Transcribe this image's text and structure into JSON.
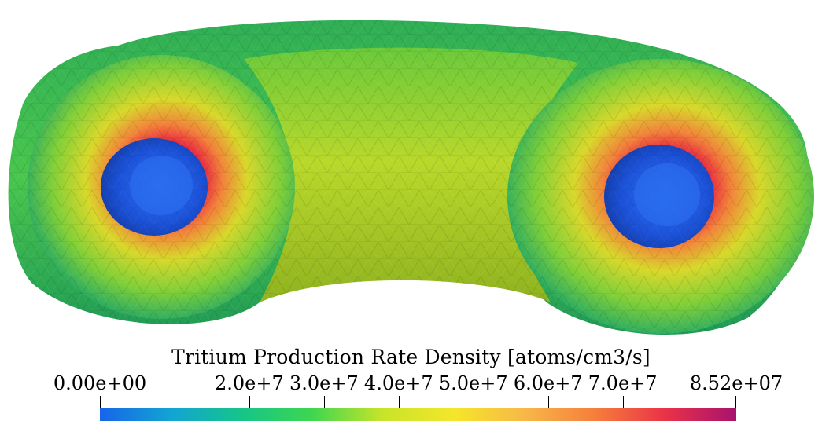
{
  "colorbar": {
    "title": "Tritium Production Rate Density [atoms/cm3/s]",
    "min_label": "0.00e+00",
    "max_label": "8.52e+07",
    "min_value": 0,
    "max_value": 85200000,
    "ticks": [
      {
        "value": 20000000,
        "label": "2.0e+7"
      },
      {
        "value": 30000000,
        "label": "3.0e+7"
      },
      {
        "value": 40000000,
        "label": "4.0e+7"
      },
      {
        "value": 50000000,
        "label": "5.0e+7"
      },
      {
        "value": 60000000,
        "label": "6.0e+7"
      },
      {
        "value": 70000000,
        "label": "7.0e+7"
      }
    ],
    "colormap": [
      "#1765e8",
      "#12a4d4",
      "#16c489",
      "#3ed650",
      "#c7e42a",
      "#f5e62a",
      "#f7b848",
      "#f67e3c",
      "#e93248",
      "#a8126e"
    ]
  },
  "scene": {
    "colors": {
      "shell": "#3ec455",
      "shell_dark": "#0c7a5a",
      "inner_band": "#9ccc2a",
      "hot_ring": "#f08a3a",
      "hot_edge": "#e0303e",
      "bore": "#1e4fd6",
      "bore_dark": "#0f2f9c"
    }
  }
}
